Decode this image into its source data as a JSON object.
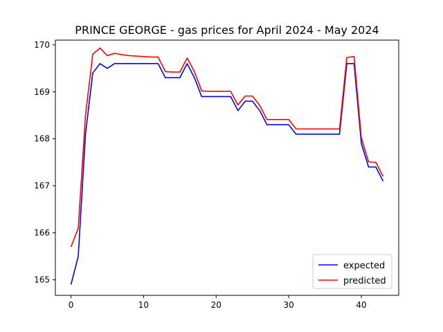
{
  "chart_data": {
    "type": "line",
    "title": "PRINCE GEORGE - gas prices for April 2024 - May 2024",
    "xlabel": "",
    "ylabel": "",
    "xlim": [
      -2.15,
      45.15
    ],
    "ylim": [
      164.67,
      170.1
    ],
    "x_ticks": [
      0,
      10,
      20,
      30,
      40
    ],
    "y_ticks": [
      165,
      166,
      167,
      168,
      169,
      170
    ],
    "grid": false,
    "legend_position": "lower-right",
    "x": [
      0,
      1,
      2,
      3,
      4,
      5,
      6,
      7,
      8,
      9,
      10,
      11,
      12,
      13,
      14,
      15,
      16,
      17,
      18,
      19,
      20,
      21,
      22,
      23,
      24,
      25,
      26,
      27,
      28,
      29,
      30,
      31,
      32,
      33,
      34,
      35,
      36,
      37,
      38,
      39,
      40,
      41,
      42,
      43
    ],
    "series": [
      {
        "name": "expected",
        "color": "#0000ff",
        "values": [
          164.9,
          165.5,
          168.1,
          169.4,
          169.6,
          169.5,
          169.6,
          169.6,
          169.6,
          169.6,
          169.6,
          169.6,
          169.6,
          169.3,
          169.3,
          169.3,
          169.6,
          169.3,
          168.9,
          168.9,
          168.9,
          168.9,
          168.9,
          168.6,
          168.8,
          168.8,
          168.6,
          168.3,
          168.3,
          168.3,
          168.3,
          168.1,
          168.1,
          168.1,
          168.1,
          168.1,
          168.1,
          168.1,
          169.6,
          169.6,
          167.9,
          167.4,
          167.4,
          167.1
        ]
      },
      {
        "name": "predicted",
        "color": "#ff0000",
        "values": [
          165.7,
          166.1,
          168.5,
          169.8,
          169.93,
          169.77,
          169.82,
          169.79,
          169.77,
          169.76,
          169.75,
          169.74,
          169.74,
          169.43,
          169.42,
          169.42,
          169.72,
          169.43,
          169.02,
          169.01,
          169.01,
          169.01,
          169.01,
          168.72,
          168.91,
          168.91,
          168.71,
          168.41,
          168.41,
          168.41,
          168.41,
          168.21,
          168.21,
          168.21,
          168.21,
          168.21,
          168.21,
          168.21,
          169.73,
          169.75,
          168.02,
          167.51,
          167.5,
          167.2
        ]
      }
    ]
  }
}
